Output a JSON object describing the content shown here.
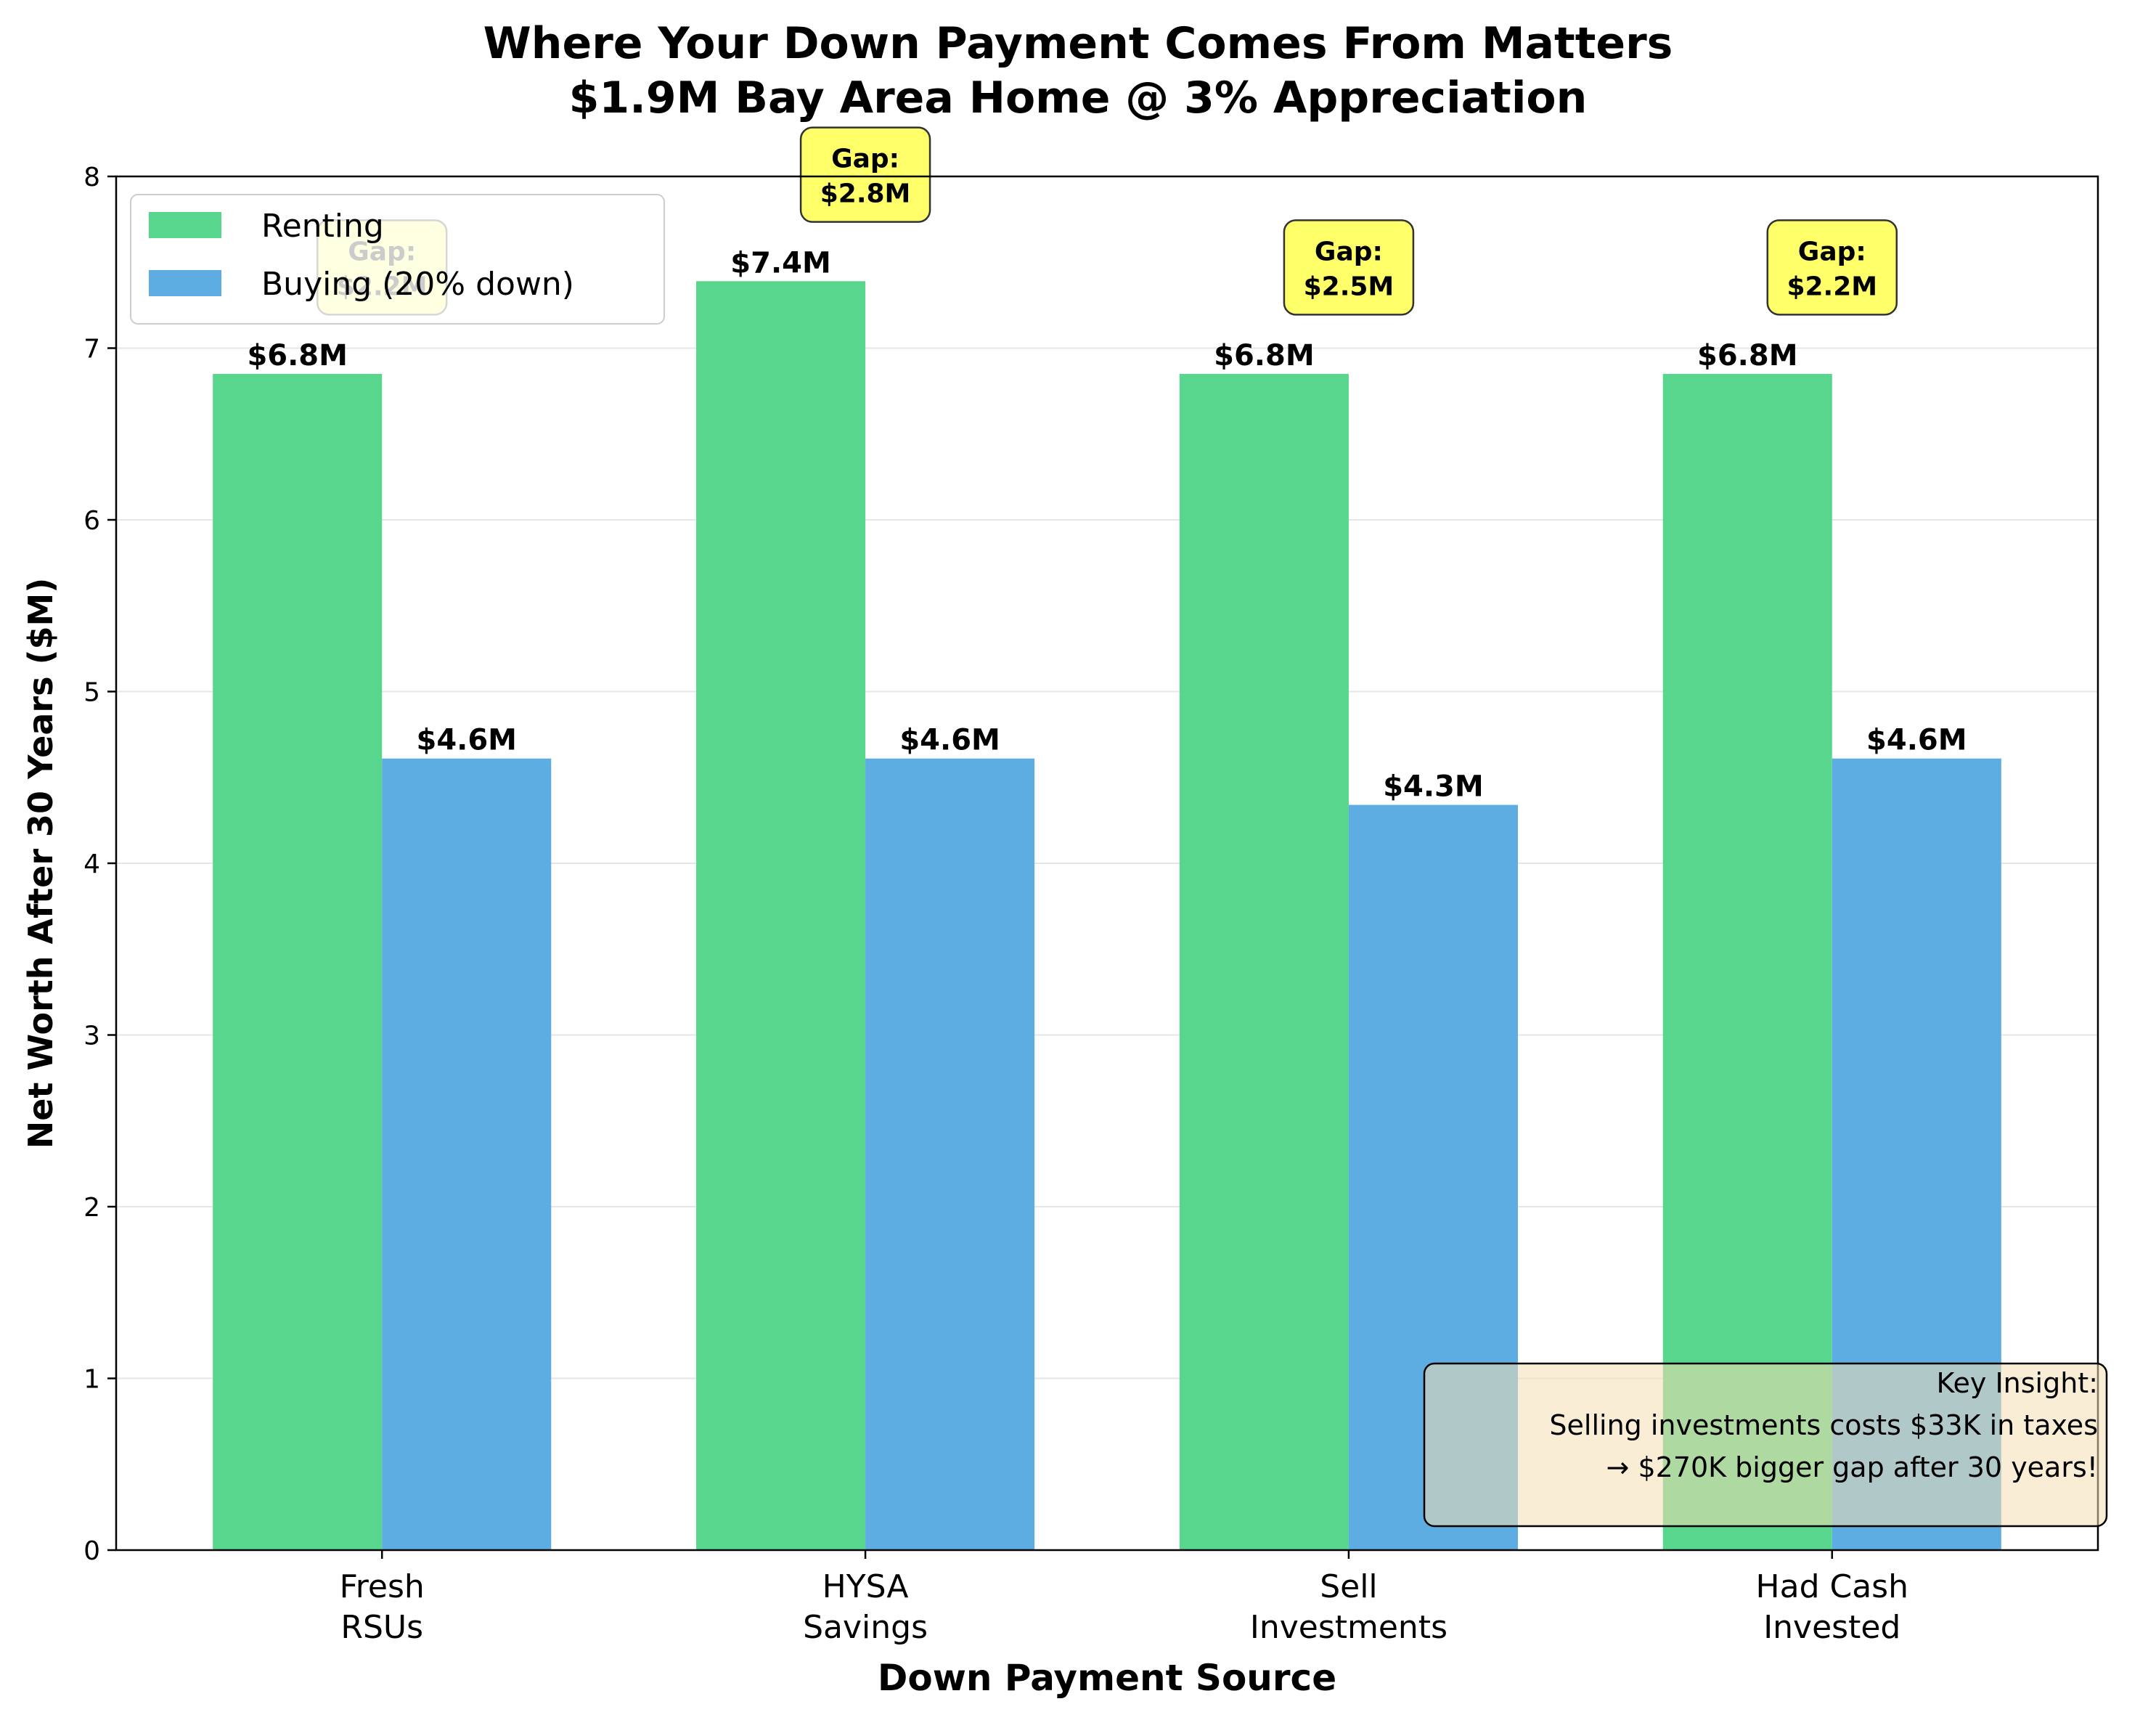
{
  "chart_data": {
    "type": "bar",
    "title_lines": [
      "Where Your Down Payment Comes From Matters",
      "$1.9M Bay Area Home @ 3% Appreciation"
    ],
    "xlabel": "Down Payment Source",
    "ylabel": "Net Worth After 30 Years ($M)",
    "ylim": [
      0,
      8
    ],
    "yticks": [
      "0",
      "1",
      "2",
      "3",
      "4",
      "5",
      "6",
      "7",
      "8"
    ],
    "grid": "y",
    "legend_position": "top-left",
    "categories": [
      [
        "Fresh",
        "RSUs"
      ],
      [
        "HYSA",
        "Savings"
      ],
      [
        "Sell",
        "Investments"
      ],
      [
        "Had Cash",
        "Invested"
      ]
    ],
    "series": [
      {
        "name": "Renting",
        "color": "#58d68d",
        "values": [
          6.85,
          7.39,
          6.85,
          6.85
        ],
        "labels": [
          "$6.8M",
          "$7.4M",
          "$6.8M",
          "$6.8M"
        ]
      },
      {
        "name": "Buying (20% down)",
        "color": "#5dade2",
        "values": [
          4.61,
          4.61,
          4.34,
          4.61
        ],
        "labels": [
          "$4.6M",
          "$4.6M",
          "$4.3M",
          "$4.6M"
        ]
      }
    ],
    "gap_annotations": [
      [
        "Gap:",
        "$2.2M"
      ],
      [
        "Gap:",
        "$2.8M"
      ],
      [
        "Gap:",
        "$2.5M"
      ],
      [
        "Gap:",
        "$2.2M"
      ]
    ],
    "gap_color": "#ffff44",
    "insight_box": {
      "lines": [
        "Key Insight:",
        "Selling investments costs $33K in taxes",
        "→ $270K bigger gap after 30 years!"
      ],
      "color": "#f5deb3"
    }
  }
}
